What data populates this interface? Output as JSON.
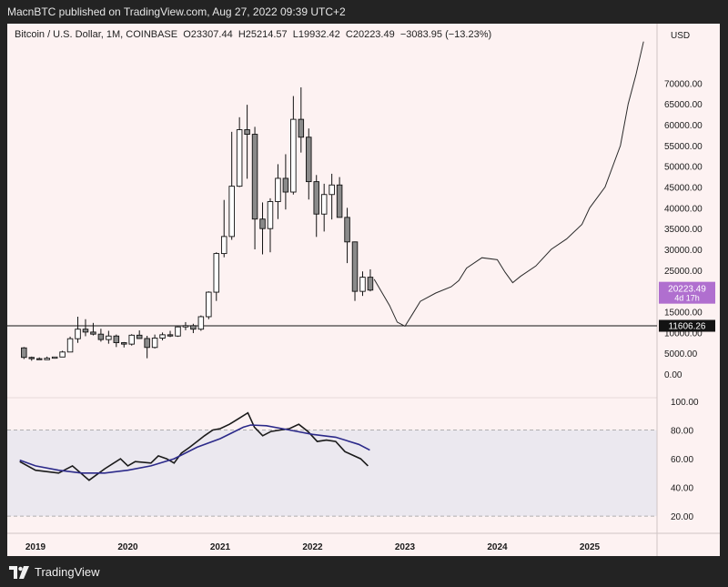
{
  "header": {
    "publisher_line": "MacnBTC published on TradingView.com, Aug 27, 2022 09:39 UTC+2"
  },
  "symbol": {
    "name": "Bitcoin / U.S. Dollar, 1M, COINBASE",
    "open": "O23307.44",
    "high": "H25214.57",
    "low": "L19932.42",
    "close": "C20223.49",
    "change": "−3083.95 (−13.23%)"
  },
  "footer": {
    "brand": "TradingView"
  },
  "colors": {
    "chart_bg": "#fdf2f2",
    "rsi_band": "#ebe8ef",
    "price_tag": "#b06fcf",
    "hline_tag": "#131313",
    "rsi_line": "#1a1a1a",
    "rsi_ma": "#2c2a8a"
  },
  "chart_data": [
    {
      "type": "candlestick",
      "title": "Bitcoin / U.S. Dollar, 1M, COINBASE",
      "currency_label": "USD",
      "y_ticks": [
        "70000.00",
        "65000.00",
        "60000.00",
        "55000.00",
        "50000.00",
        "45000.00",
        "40000.00",
        "35000.00",
        "30000.00",
        "25000.00",
        "20000.00",
        "15000.00",
        "10000.00",
        "5000.00",
        "0.00"
      ],
      "ylim": [
        0,
        76000
      ],
      "x_ticks": [
        "2019",
        "2020",
        "2021",
        "2022",
        "2023",
        "2024",
        "2025"
      ],
      "last_price_label": "20223.49",
      "countdown_label": "4d 17h",
      "horizontal_line": {
        "value": 11606.26,
        "label": "11606.26"
      },
      "candles": [
        {
          "d": "2018-11",
          "o": 6300,
          "h": 6500,
          "l": 3600,
          "c": 4000
        },
        {
          "d": "2018-12",
          "o": 4000,
          "h": 4200,
          "l": 3200,
          "c": 3700
        },
        {
          "d": "2019-01",
          "o": 3700,
          "h": 4000,
          "l": 3400,
          "c": 3450
        },
        {
          "d": "2019-02",
          "o": 3450,
          "h": 4200,
          "l": 3400,
          "c": 3800
        },
        {
          "d": "2019-03",
          "o": 3800,
          "h": 4100,
          "l": 3700,
          "c": 4100
        },
        {
          "d": "2019-04",
          "o": 4100,
          "h": 5600,
          "l": 4100,
          "c": 5300
        },
        {
          "d": "2019-05",
          "o": 5300,
          "h": 9000,
          "l": 5300,
          "c": 8500
        },
        {
          "d": "2019-06",
          "o": 8500,
          "h": 13800,
          "l": 7500,
          "c": 10800
        },
        {
          "d": "2019-07",
          "o": 10800,
          "h": 13200,
          "l": 9100,
          "c": 10100
        },
        {
          "d": "2019-08",
          "o": 10100,
          "h": 12300,
          "l": 9300,
          "c": 9600
        },
        {
          "d": "2019-09",
          "o": 9600,
          "h": 10900,
          "l": 7800,
          "c": 8300
        },
        {
          "d": "2019-10",
          "o": 8300,
          "h": 10400,
          "l": 7300,
          "c": 9150
        },
        {
          "d": "2019-11",
          "o": 9150,
          "h": 9500,
          "l": 6500,
          "c": 7550
        },
        {
          "d": "2019-12",
          "o": 7550,
          "h": 7700,
          "l": 6400,
          "c": 7200
        },
        {
          "d": "2020-01",
          "o": 7200,
          "h": 9600,
          "l": 6850,
          "c": 9350
        },
        {
          "d": "2020-02",
          "o": 9350,
          "h": 10500,
          "l": 8500,
          "c": 8550
        },
        {
          "d": "2020-03",
          "o": 8550,
          "h": 9200,
          "l": 3800,
          "c": 6400
        },
        {
          "d": "2020-04",
          "o": 6400,
          "h": 9500,
          "l": 6150,
          "c": 8650
        },
        {
          "d": "2020-05",
          "o": 8650,
          "h": 10000,
          "l": 8100,
          "c": 9450
        },
        {
          "d": "2020-06",
          "o": 9450,
          "h": 10400,
          "l": 8900,
          "c": 9150
        },
        {
          "d": "2020-07",
          "o": 9150,
          "h": 11450,
          "l": 8950,
          "c": 11350
        },
        {
          "d": "2020-08",
          "o": 11350,
          "h": 12500,
          "l": 10550,
          "c": 11650
        },
        {
          "d": "2020-09",
          "o": 11650,
          "h": 12100,
          "l": 9850,
          "c": 10800
        },
        {
          "d": "2020-10",
          "o": 10800,
          "h": 14100,
          "l": 10400,
          "c": 13800
        },
        {
          "d": "2020-11",
          "o": 13800,
          "h": 19900,
          "l": 13200,
          "c": 19700
        },
        {
          "d": "2020-12",
          "o": 19700,
          "h": 29300,
          "l": 17600,
          "c": 29000
        },
        {
          "d": "2021-01",
          "o": 29000,
          "h": 41900,
          "l": 28100,
          "c": 33100
        },
        {
          "d": "2021-02",
          "o": 33100,
          "h": 58300,
          "l": 32300,
          "c": 45200
        },
        {
          "d": "2021-03",
          "o": 45200,
          "h": 61800,
          "l": 45000,
          "c": 58800
        },
        {
          "d": "2021-04",
          "o": 58800,
          "h": 64800,
          "l": 47000,
          "c": 57700
        },
        {
          "d": "2021-05",
          "o": 57700,
          "h": 59500,
          "l": 30000,
          "c": 37300
        },
        {
          "d": "2021-06",
          "o": 37300,
          "h": 41300,
          "l": 28800,
          "c": 35000
        },
        {
          "d": "2021-07",
          "o": 35000,
          "h": 42300,
          "l": 29300,
          "c": 41500
        },
        {
          "d": "2021-08",
          "o": 41500,
          "h": 50500,
          "l": 37300,
          "c": 47100
        },
        {
          "d": "2021-09",
          "o": 47100,
          "h": 52900,
          "l": 39600,
          "c": 43800
        },
        {
          "d": "2021-10",
          "o": 43800,
          "h": 66900,
          "l": 43200,
          "c": 61300
        },
        {
          "d": "2021-11",
          "o": 61300,
          "h": 69000,
          "l": 53300,
          "c": 57000
        },
        {
          "d": "2021-12",
          "o": 57000,
          "h": 59100,
          "l": 42000,
          "c": 46300
        },
        {
          "d": "2022-01",
          "o": 46300,
          "h": 47900,
          "l": 33000,
          "c": 38500
        },
        {
          "d": "2022-02",
          "o": 38500,
          "h": 45800,
          "l": 34300,
          "c": 43200
        },
        {
          "d": "2022-03",
          "o": 43200,
          "h": 48200,
          "l": 37200,
          "c": 45500
        },
        {
          "d": "2022-04",
          "o": 45500,
          "h": 47400,
          "l": 37700,
          "c": 37700
        },
        {
          "d": "2022-05",
          "o": 37700,
          "h": 40000,
          "l": 26700,
          "c": 31800
        },
        {
          "d": "2022-06",
          "o": 31800,
          "h": 31900,
          "l": 17600,
          "c": 19900
        },
        {
          "d": "2022-07",
          "o": 19900,
          "h": 24700,
          "l": 18800,
          "c": 23300
        },
        {
          "d": "2022-08",
          "o": 23300,
          "h": 25200,
          "l": 19900,
          "c": 20200
        }
      ],
      "projection": [
        [
          "2022-09",
          22800
        ],
        [
          "2022-11",
          16500
        ],
        [
          "2022-12",
          12500
        ],
        [
          "2023-01",
          11500
        ],
        [
          "2023-02",
          14500
        ],
        [
          "2023-03",
          17500
        ],
        [
          "2023-05",
          19500
        ],
        [
          "2023-07",
          21000
        ],
        [
          "2023-08",
          22500
        ],
        [
          "2023-09",
          25500
        ],
        [
          "2023-11",
          28000
        ],
        [
          "2024-01",
          27500
        ],
        [
          "2024-02",
          24500
        ],
        [
          "2024-03",
          22000
        ],
        [
          "2024-04",
          23500
        ],
        [
          "2024-06",
          26000
        ],
        [
          "2024-08",
          30000
        ],
        [
          "2024-10",
          32500
        ],
        [
          "2024-12",
          36000
        ],
        [
          "2025-01",
          40000
        ],
        [
          "2025-03",
          45000
        ],
        [
          "2025-05",
          55000
        ],
        [
          "2025-06",
          65000
        ],
        [
          "2025-07",
          72000
        ],
        [
          "2025-08",
          80000
        ]
      ]
    },
    {
      "type": "line",
      "title": "RSI",
      "y_ticks": [
        "100.00",
        "80.00",
        "60.00",
        "40.00",
        "20.00"
      ],
      "ylim": [
        15,
        100
      ],
      "band": [
        20,
        80
      ],
      "series": [
        {
          "name": "RSI",
          "values": [
            [
              2018.83,
              58
            ],
            [
              2019.0,
              52
            ],
            [
              2019.25,
              50
            ],
            [
              2019.4,
              55
            ],
            [
              2019.58,
              45
            ],
            [
              2019.75,
              53
            ],
            [
              2019.92,
              60
            ],
            [
              2020.0,
              55
            ],
            [
              2020.08,
              58
            ],
            [
              2020.25,
              57
            ],
            [
              2020.33,
              62
            ],
            [
              2020.42,
              60
            ],
            [
              2020.5,
              57
            ],
            [
              2020.58,
              64
            ],
            [
              2020.67,
              68
            ],
            [
              2020.75,
              72
            ],
            [
              2020.83,
              76
            ],
            [
              2020.92,
              80
            ],
            [
              2021.0,
              81
            ],
            [
              2021.1,
              84
            ],
            [
              2021.2,
              88
            ],
            [
              2021.3,
              92
            ],
            [
              2021.37,
              82
            ],
            [
              2021.46,
              76
            ],
            [
              2021.55,
              79
            ],
            [
              2021.65,
              80
            ],
            [
              2021.75,
              81
            ],
            [
              2021.85,
              84
            ],
            [
              2021.95,
              79
            ],
            [
              2022.05,
              72
            ],
            [
              2022.15,
              73
            ],
            [
              2022.25,
              72
            ],
            [
              2022.35,
              65
            ],
            [
              2022.45,
              62
            ],
            [
              2022.52,
              60
            ],
            [
              2022.6,
              55
            ]
          ]
        },
        {
          "name": "RSI-based MA",
          "values": [
            [
              2018.83,
              59
            ],
            [
              2019.0,
              55
            ],
            [
              2019.25,
              52
            ],
            [
              2019.5,
              50
            ],
            [
              2019.75,
              50
            ],
            [
              2020.0,
              52
            ],
            [
              2020.25,
              55
            ],
            [
              2020.5,
              60
            ],
            [
              2020.75,
              68
            ],
            [
              2021.0,
              74
            ],
            [
              2021.25,
              82
            ],
            [
              2021.33,
              83.5
            ],
            [
              2021.5,
              83
            ],
            [
              2021.75,
              80
            ],
            [
              2022.0,
              77
            ],
            [
              2022.25,
              75
            ],
            [
              2022.5,
              70
            ],
            [
              2022.62,
              66
            ]
          ]
        }
      ]
    }
  ]
}
